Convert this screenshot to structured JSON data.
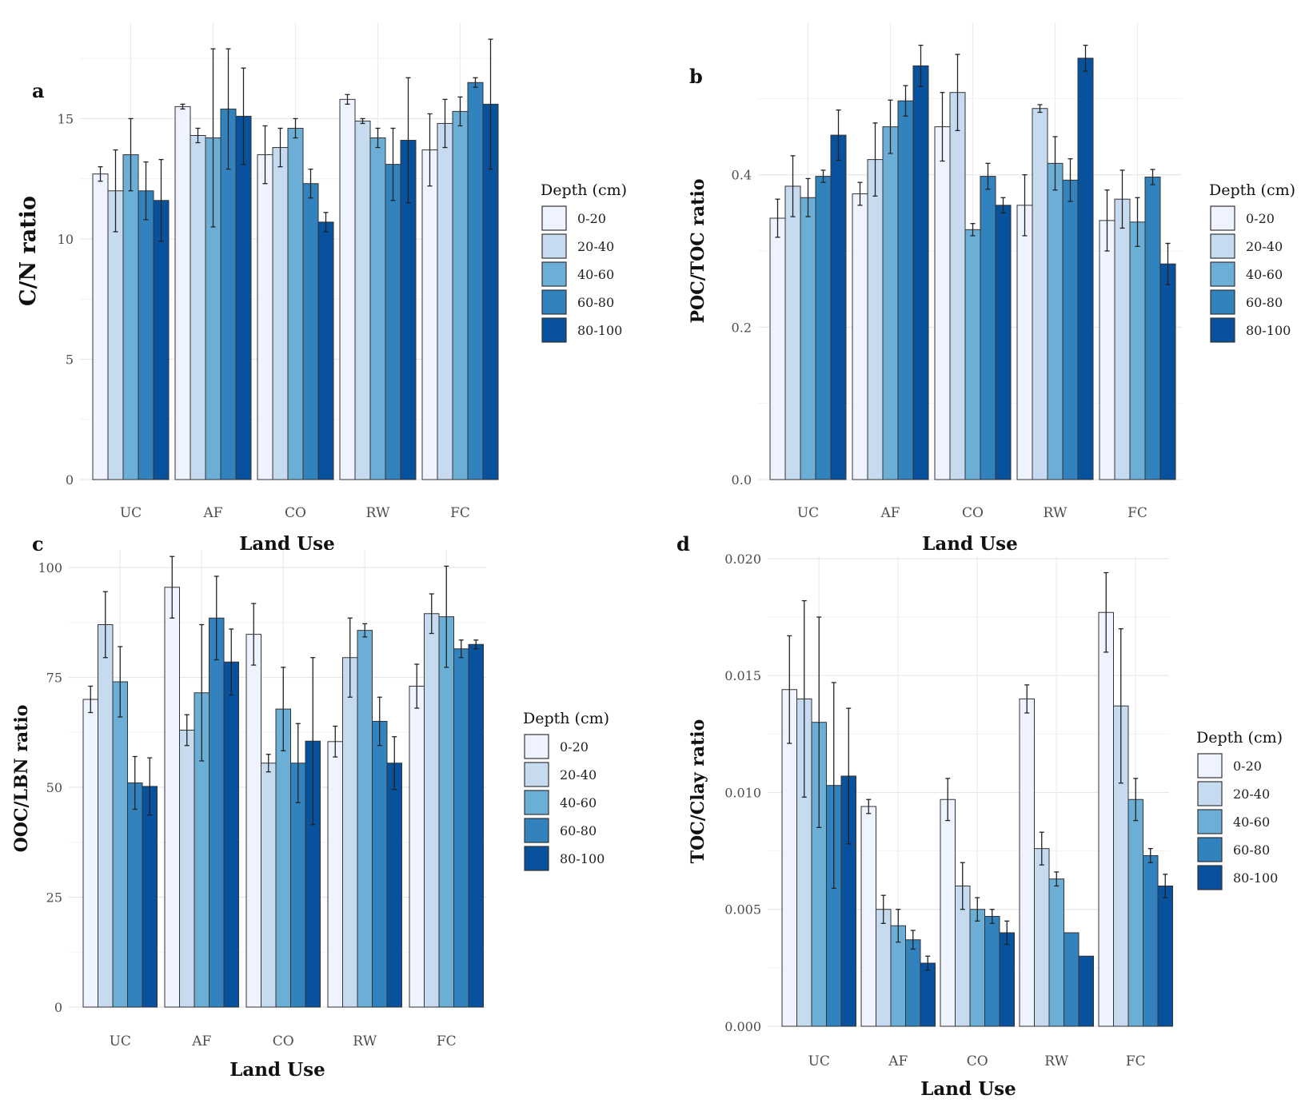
{
  "figure": {
    "legend_title": "Depth (cm)",
    "depths": [
      "0-20",
      "20-40",
      "40-60",
      "60-80",
      "80-100"
    ],
    "colors": [
      "#eff3ff",
      "#c6dbef",
      "#6baed6",
      "#3182bd",
      "#08519c"
    ],
    "x_label": "Land Use"
  },
  "chart_data": [
    {
      "type": "bar",
      "panel": "a",
      "ylabel": "C/N ratio",
      "xlabel": "Land Use",
      "categories": [
        "UC",
        "AF",
        "CO",
        "RW",
        "FC"
      ],
      "ylim": [
        0,
        19
      ],
      "yticks": [
        0,
        5,
        10,
        15
      ],
      "ytick_labels": [
        "0",
        "5",
        "10",
        "15"
      ],
      "legend": "right",
      "series": [
        {
          "name": "0-20",
          "values": [
            12.7,
            15.5,
            13.5,
            15.8,
            13.7
          ],
          "errors": [
            0.3,
            0.1,
            1.2,
            0.2,
            1.5
          ]
        },
        {
          "name": "20-40",
          "values": [
            12.0,
            14.3,
            13.8,
            14.9,
            14.8
          ],
          "errors": [
            1.7,
            0.3,
            0.8,
            0.1,
            1.0
          ]
        },
        {
          "name": "40-60",
          "values": [
            13.5,
            14.2,
            14.6,
            14.2,
            15.3
          ],
          "errors": [
            1.5,
            3.7,
            0.4,
            0.4,
            0.6
          ]
        },
        {
          "name": "60-80",
          "values": [
            12.0,
            15.4,
            12.3,
            13.1,
            16.5
          ],
          "errors": [
            1.2,
            2.5,
            0.6,
            1.5,
            0.2
          ]
        },
        {
          "name": "80-100",
          "values": [
            11.6,
            15.1,
            10.7,
            14.1,
            15.6
          ],
          "errors": [
            1.7,
            2.0,
            0.4,
            2.6,
            2.7
          ]
        }
      ]
    },
    {
      "type": "bar",
      "panel": "b",
      "ylabel": "POC/TOC ratio",
      "xlabel": "Land Use",
      "categories": [
        "UC",
        "AF",
        "CO",
        "RW",
        "FC"
      ],
      "ylim": [
        0,
        0.6
      ],
      "yticks": [
        0,
        0.2,
        0.4
      ],
      "ytick_labels": [
        "0.0",
        "0.2",
        "0.4"
      ],
      "legend": "right",
      "series": [
        {
          "name": "0-20",
          "values": [
            0.343,
            0.375,
            0.463,
            0.36,
            0.34
          ],
          "errors": [
            0.025,
            0.015,
            0.045,
            0.04,
            0.04
          ]
        },
        {
          "name": "20-40",
          "values": [
            0.385,
            0.42,
            0.508,
            0.487,
            0.368
          ],
          "errors": [
            0.04,
            0.048,
            0.05,
            0.005,
            0.038
          ]
        },
        {
          "name": "40-60",
          "values": [
            0.37,
            0.463,
            0.328,
            0.415,
            0.338
          ],
          "errors": [
            0.025,
            0.035,
            0.008,
            0.035,
            0.032
          ]
        },
        {
          "name": "60-80",
          "values": [
            0.398,
            0.497,
            0.398,
            0.393,
            0.397
          ],
          "errors": [
            0.008,
            0.02,
            0.017,
            0.028,
            0.01
          ]
        },
        {
          "name": "80-100",
          "values": [
            0.452,
            0.543,
            0.36,
            0.553,
            0.283
          ],
          "errors": [
            0.033,
            0.027,
            0.01,
            0.017,
            0.027
          ]
        }
      ]
    },
    {
      "type": "bar",
      "panel": "c",
      "ylabel": "OOC/LBN ratio",
      "xlabel": "Land Use",
      "categories": [
        "UC",
        "AF",
        "CO",
        "RW",
        "FC"
      ],
      "ylim": [
        0,
        104
      ],
      "yticks": [
        0,
        25,
        50,
        75,
        100
      ],
      "ytick_labels": [
        "0",
        "25",
        "50",
        "75",
        "100"
      ],
      "legend": "right",
      "series": [
        {
          "name": "0-20",
          "values": [
            70.0,
            95.5,
            84.8,
            60.4,
            73.0
          ],
          "errors": [
            3.0,
            7.0,
            7.0,
            3.5,
            5.0
          ]
        },
        {
          "name": "20-40",
          "values": [
            87.0,
            63.0,
            55.5,
            79.5,
            89.5
          ],
          "errors": [
            7.5,
            3.5,
            2.0,
            9.0,
            4.5
          ]
        },
        {
          "name": "40-60",
          "values": [
            74.0,
            71.5,
            67.8,
            85.7,
            88.8
          ],
          "errors": [
            8.0,
            15.5,
            9.5,
            1.5,
            11.5
          ]
        },
        {
          "name": "60-80",
          "values": [
            51.0,
            88.5,
            55.5,
            65.0,
            81.5
          ],
          "errors": [
            6.0,
            9.5,
            9.0,
            5.5,
            2.0
          ]
        },
        {
          "name": "80-100",
          "values": [
            50.2,
            78.5,
            60.5,
            55.5,
            82.5
          ],
          "errors": [
            6.5,
            7.5,
            19.0,
            6.0,
            1.0
          ]
        }
      ]
    },
    {
      "type": "bar",
      "panel": "d",
      "ylabel": "TOC/Clay ratio",
      "xlabel": "Land Use",
      "categories": [
        "UC",
        "AF",
        "CO",
        "RW",
        "FC"
      ],
      "ylim": [
        0,
        0.0201
      ],
      "yticks": [
        0,
        0.005,
        0.01,
        0.015,
        0.02
      ],
      "ytick_labels": [
        "0.000",
        "0.005",
        "0.010",
        "0.015",
        "0.020"
      ],
      "legend": "right",
      "series": [
        {
          "name": "0-20",
          "values": [
            0.0144,
            0.0094,
            0.0097,
            0.014,
            0.0177
          ],
          "errors": [
            0.0023,
            0.0003,
            0.0009,
            0.0006,
            0.0017
          ]
        },
        {
          "name": "20-40",
          "values": [
            0.014,
            0.005,
            0.006,
            0.0076,
            0.0137
          ],
          "errors": [
            0.0042,
            0.0006,
            0.001,
            0.0007,
            0.0033
          ]
        },
        {
          "name": "40-60",
          "values": [
            0.013,
            0.0043,
            0.005,
            0.0063,
            0.0097
          ],
          "errors": [
            0.0045,
            0.0007,
            0.0005,
            0.0003,
            0.0009
          ]
        },
        {
          "name": "60-80",
          "values": [
            0.0103,
            0.0037,
            0.0047,
            0.004,
            0.0073
          ],
          "errors": [
            0.0044,
            0.0004,
            0.0003,
            0.0,
            0.0003
          ]
        },
        {
          "name": "80-100",
          "values": [
            0.0107,
            0.0027,
            0.004,
            0.003,
            0.006
          ],
          "errors": [
            0.0029,
            0.0003,
            0.0005,
            0.0,
            0.0005
          ]
        }
      ]
    }
  ]
}
